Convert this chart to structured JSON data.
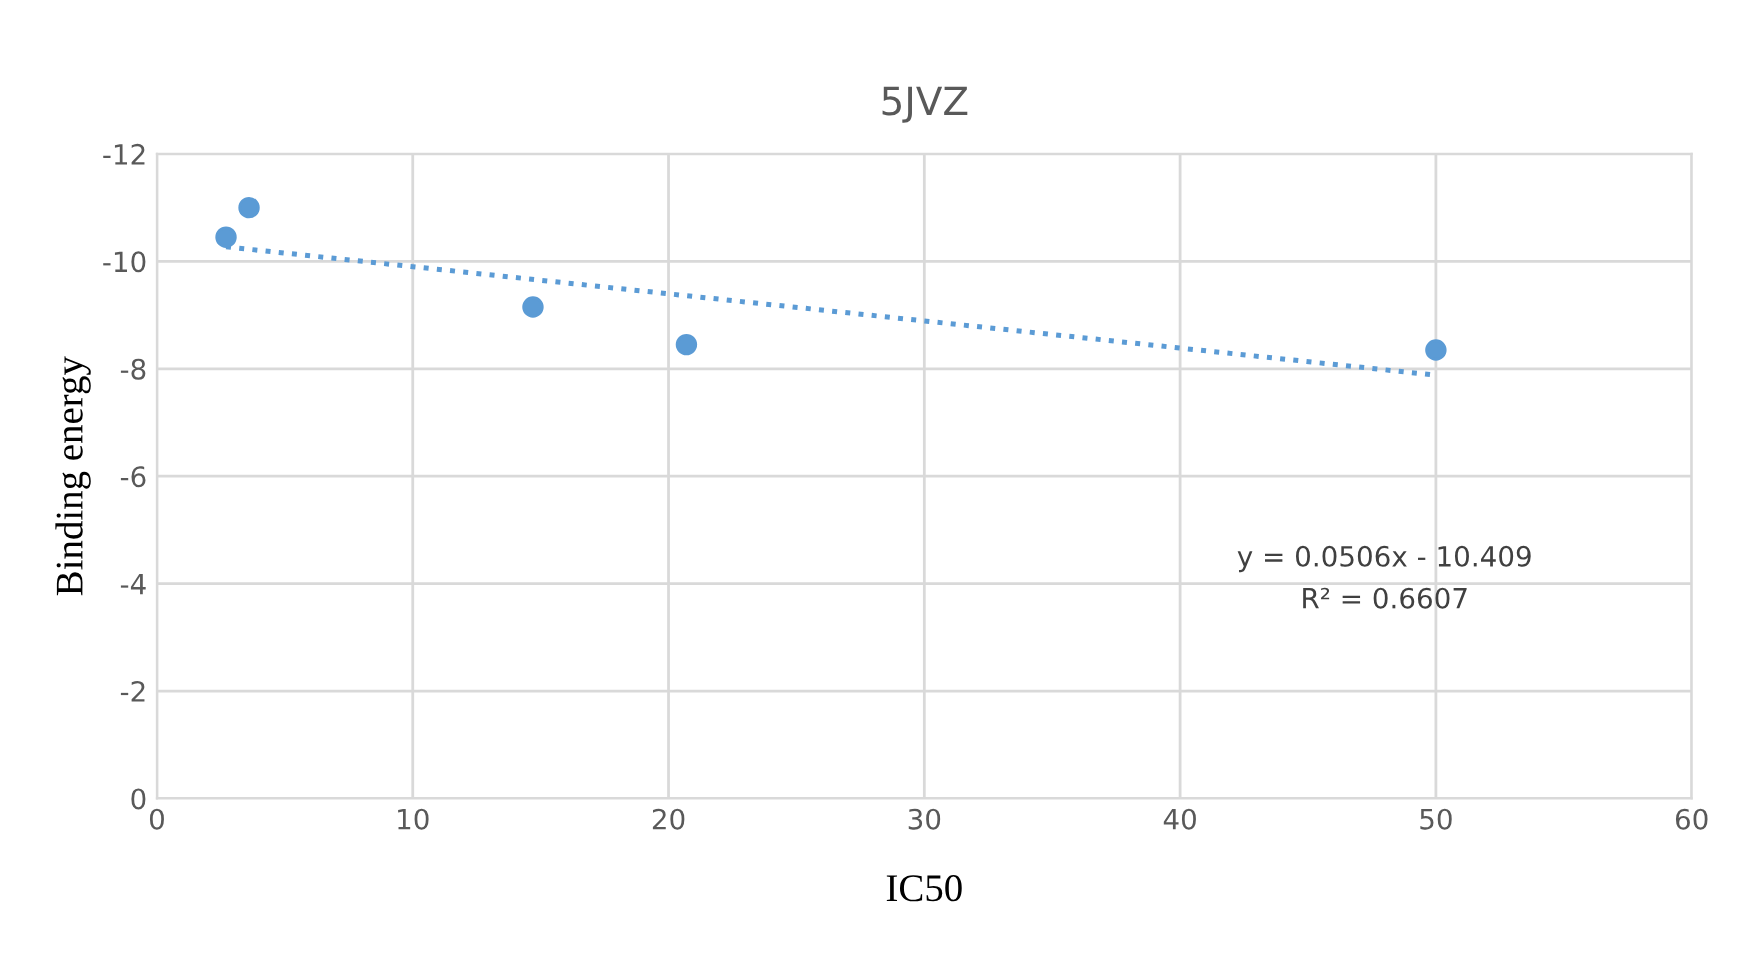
{
  "chart_data": {
    "type": "scatter",
    "title": "5JVZ",
    "xlabel": "IC50",
    "ylabel": "Binding energy",
    "series": [
      {
        "color": "#5b9bd5",
        "x": [
          2.7,
          3.6,
          14.7,
          20.7,
          50
        ],
        "values": [
          -10.45,
          -11.0,
          -9.15,
          -8.45,
          -8.35
        ],
        "marker": "circle"
      },
      {
        "type": "line",
        "color": "#5b9bd5",
        "x": [
          2.7,
          50
        ],
        "values": [
          -10.27,
          -7.88
        ],
        "line_style": "dotted",
        "marker": "none"
      }
    ],
    "annotations": [
      "y = 0.0506x - 10.409",
      "R² = 0.6607"
    ],
    "xlim": [
      0,
      60
    ],
    "xticks": [
      0,
      10,
      20,
      30,
      40,
      50,
      60
    ],
    "ylim": [
      0,
      -12
    ],
    "yticks": [
      0,
      -2,
      -4,
      -6,
      -8,
      -10,
      -12
    ],
    "grid": true,
    "legend": false
  }
}
